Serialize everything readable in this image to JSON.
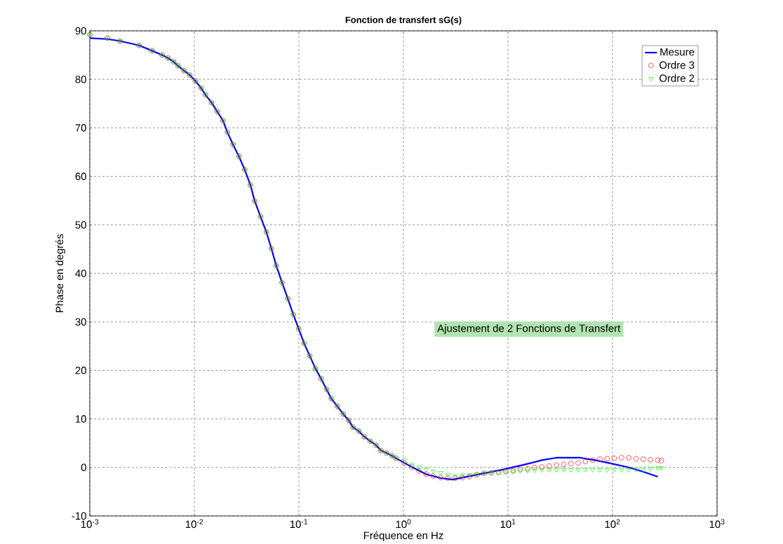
{
  "chart_data": {
    "type": "line",
    "title": "Fonction de transfert sG(s)",
    "xlabel": "Fréquence en Hz",
    "ylabel": "Phase en degrés",
    "log": "x",
    "grid": true,
    "legend": "top right",
    "xlim": [
      0.001,
      1000
    ],
    "ylim": [
      -10,
      90
    ],
    "xticks": [
      {
        "value": 0.001,
        "label": "10$^{-3}$"
      },
      {
        "value": 0.01,
        "label": "10$^{-2}$"
      },
      {
        "value": 0.1,
        "label": "10$^{-1}$"
      },
      {
        "value": 1,
        "label": "10$^{0}$"
      },
      {
        "value": 10,
        "label": "10$^{1}$"
      },
      {
        "value": 100,
        "label": "10$^{2}$"
      },
      {
        "value": 1000,
        "label": "10$^{3}$"
      }
    ],
    "yticks": [
      -10,
      0,
      10,
      20,
      30,
      40,
      50,
      60,
      70,
      80,
      90
    ],
    "annotations": [
      "Ajustement de 2 Fonctions de Transfert"
    ],
    "series": [
      {
        "name": "Mesure",
        "type": "line",
        "color": "#0000ff",
        "marker": "none",
        "line_style": "solid",
        "x": [
          0.001,
          0.00147,
          0.00195,
          0.00296,
          0.00394,
          0.00492,
          0.00558,
          0.00635,
          0.00698,
          0.00794,
          0.00902,
          0.0102,
          0.0116,
          0.0128,
          0.0146,
          0.0165,
          0.0188,
          0.0207,
          0.0234,
          0.0267,
          0.0303,
          0.0344,
          0.0378,
          0.043,
          0.0489,
          0.0546,
          0.0607,
          0.069,
          0.0783,
          0.0885,
          0.0995,
          0.112,
          0.127,
          0.144,
          0.163,
          0.184,
          0.204,
          0.233,
          0.266,
          0.3,
          0.329,
          0.373,
          0.424,
          0.482,
          0.547,
          0.608,
          0.687,
          0.778,
          0.849,
          1.2,
          1.65,
          2.27,
          2.96,
          4.08,
          5.91,
          9.04,
          13.8,
          21.1,
          29,
          49.4,
          67.9,
          93.5,
          143,
          197,
          271
        ],
        "values": [
          88.5,
          88.3,
          87.9,
          87.0,
          85.9,
          85.0,
          84.4,
          83.6,
          82.8,
          81.8,
          80.9,
          79.7,
          78.2,
          76.8,
          75.2,
          73.4,
          71.5,
          69.1,
          66.6,
          64.1,
          61.4,
          58.2,
          54.9,
          51.7,
          48.5,
          45.1,
          41.6,
          38.1,
          34.8,
          31.5,
          28.6,
          25.6,
          23.0,
          20.4,
          18.3,
          16.1,
          14.2,
          12.6,
          11.0,
          9.7,
          8.3,
          7.5,
          6.3,
          5.4,
          4.6,
          3.5,
          3.0,
          2.4,
          1.9,
          0.1,
          -1.4,
          -2.2,
          -2.5,
          -1.9,
          -1.2,
          -0.4,
          0.5,
          1.5,
          2.0,
          2.0,
          1.5,
          0.9,
          0,
          -0.9,
          -1.9
        ]
      },
      {
        "name": "Ordre 3",
        "type": "scatter",
        "color": "#ff0000",
        "marker": "circle",
        "x": [
          0.001,
          0.00147,
          0.00195,
          0.00296,
          0.00394,
          0.00492,
          0.00558,
          0.00635,
          0.00698,
          0.00794,
          0.00902,
          0.0102,
          0.0116,
          0.0128,
          0.0146,
          0.0165,
          0.0188,
          0.0207,
          0.0234,
          0.0267,
          0.0303,
          0.0344,
          0.0378,
          0.043,
          0.0489,
          0.0546,
          0.0607,
          0.069,
          0.0783,
          0.0885,
          0.0995,
          0.112,
          0.127,
          0.144,
          0.163,
          0.184,
          0.204,
          0.233,
          0.266,
          0.3,
          0.329,
          0.373,
          0.424,
          0.482,
          0.547,
          0.608,
          0.687,
          0.778,
          0.849,
          1.02,
          1.2,
          1.41,
          1.65,
          1.93,
          2.26,
          2.66,
          3.12,
          3.66,
          4.29,
          5.03,
          5.9,
          6.92,
          8.12,
          9.52,
          11.2,
          13.1,
          15.4,
          18,
          21.1,
          24.8,
          29.1,
          34.1,
          40,
          46.9,
          55,
          64.6,
          75.7,
          88.8,
          104,
          122,
          143,
          168,
          197,
          231,
          271,
          293
        ],
        "values": [
          89.2,
          88.5,
          87.9,
          87.0,
          85.9,
          85.0,
          84.4,
          83.6,
          82.8,
          81.8,
          80.9,
          79.7,
          78.2,
          76.8,
          75.2,
          73.4,
          71.5,
          69.1,
          66.6,
          64.1,
          61.4,
          58.2,
          54.9,
          51.7,
          48.5,
          45.1,
          41.6,
          38.1,
          34.8,
          31.5,
          28.6,
          25.6,
          23.0,
          20.4,
          18.3,
          16.1,
          14.2,
          12.6,
          11.0,
          9.7,
          8.3,
          7.5,
          6.3,
          5.4,
          4.6,
          3.5,
          3.0,
          2.4,
          1.9,
          0.9,
          0.1,
          -0.7,
          -1.4,
          -1.8,
          -2.1,
          -2.2,
          -2.2,
          -2.1,
          -1.9,
          -1.5,
          -1.2,
          -1.1,
          -1.0,
          -0.8,
          -0.7,
          -0.4,
          -0.3,
          0,
          0.1,
          0.3,
          0.5,
          0.6,
          0.8,
          0.9,
          1.2,
          1.5,
          1.7,
          1.8,
          1.9,
          2.0,
          2.0,
          1.8,
          1.7,
          1.6,
          1.5,
          1.4
        ]
      },
      {
        "name": "Ordre 2",
        "type": "scatter",
        "color": "#00ff00",
        "marker": "triangle",
        "x": [
          0.001,
          0.00147,
          0.00195,
          0.00296,
          0.00394,
          0.00492,
          0.00558,
          0.00635,
          0.00698,
          0.00794,
          0.00902,
          0.0102,
          0.0116,
          0.0128,
          0.0146,
          0.0165,
          0.0188,
          0.0207,
          0.0234,
          0.0267,
          0.0303,
          0.0344,
          0.0378,
          0.043,
          0.0489,
          0.0546,
          0.0607,
          0.069,
          0.0783,
          0.0885,
          0.0995,
          0.112,
          0.127,
          0.144,
          0.163,
          0.184,
          0.204,
          0.233,
          0.266,
          0.3,
          0.329,
          0.373,
          0.424,
          0.482,
          0.547,
          0.608,
          0.687,
          0.778,
          0.849,
          1.02,
          1.2,
          1.41,
          1.65,
          1.93,
          2.26,
          2.66,
          3.12,
          3.66,
          4.29,
          5.03,
          5.9,
          6.92,
          8.12,
          9.52,
          11.2,
          13.1,
          15.4,
          18,
          21.1,
          24.8,
          29.1,
          34.1,
          40,
          46.9,
          55,
          64.6,
          75.7,
          88.8,
          104,
          122,
          143,
          168,
          197,
          231,
          271,
          293
        ],
        "values": [
          89.2,
          88.5,
          87.9,
          87.0,
          85.9,
          85.0,
          84.4,
          83.6,
          82.8,
          81.8,
          80.9,
          79.7,
          78.2,
          76.8,
          75.2,
          73.4,
          71.5,
          69.1,
          66.6,
          64.1,
          61.4,
          58.2,
          54.9,
          51.7,
          48.5,
          45.1,
          41.6,
          38.1,
          34.8,
          31.5,
          28.6,
          25.6,
          23.0,
          20.4,
          18.3,
          16.1,
          14.2,
          12.6,
          11.0,
          9.7,
          8.3,
          7.5,
          6.3,
          5.4,
          4.6,
          3.5,
          3.0,
          2.4,
          1.9,
          1.5,
          0.6,
          0.1,
          -0.4,
          -0.8,
          -1.1,
          -1.5,
          -1.8,
          -1.6,
          -1.5,
          -1.4,
          -1.2,
          -1.1,
          -1.1,
          -1.0,
          -0.8,
          -0.7,
          -0.7,
          -0.6,
          -0.5,
          -0.5,
          -0.5,
          -0.5,
          -0.5,
          -0.5,
          -0.5,
          -0.5,
          -0.5,
          -0.5,
          -0.5,
          -0.5,
          -0.5,
          -0.4,
          -0.4,
          -0.2,
          -0.1,
          -0.1
        ]
      }
    ]
  }
}
